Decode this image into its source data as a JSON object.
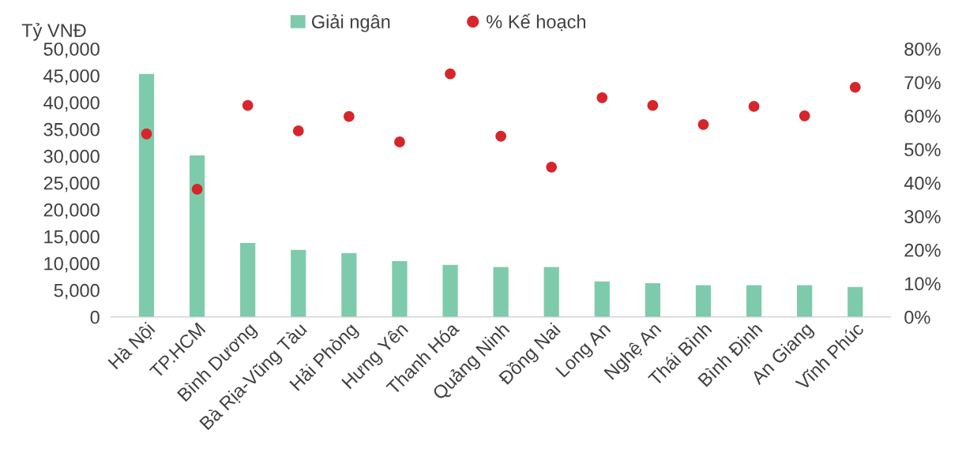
{
  "chart_data": {
    "type": "bar",
    "ylabel": "Tỷ VNĐ",
    "legend": "top",
    "grid": false,
    "categories": [
      "Hà Nội",
      "TP.HCM",
      "Bình Dương",
      "Bà Rịa-Vũng Tàu",
      "Hải Phòng",
      "Hưng Yên",
      "Thanh Hóa",
      "Quảng Ninh",
      "Đồng Nai",
      "Long An",
      "Nghệ An",
      "Thái Bình",
      "Bình Định",
      "An Giang",
      "Vĩnh Phúc"
    ],
    "series": [
      {
        "name": "Giải ngân",
        "color": "#7ecbac",
        "values": [
          45300,
          30100,
          13800,
          12500,
          11900,
          10400,
          9700,
          9300,
          9300,
          6600,
          6300,
          5900,
          5900,
          5900,
          5600
        ]
      },
      {
        "name": "% Kế hoạch",
        "type": "scatter",
        "axis": "y2",
        "marker": "circle",
        "color": "#d7262b",
        "values": [
          54.6,
          38.1,
          63.1,
          55.5,
          59.8,
          52.2,
          72.5,
          53.9,
          44.7,
          65.4,
          63.1,
          57.4,
          62.8,
          60.0,
          68.5
        ]
      }
    ],
    "ylim": [
      0,
      50000
    ],
    "yticks": [
      {
        "value": 0,
        "label": "0"
      },
      {
        "value": 5000,
        "label": "5,000"
      },
      {
        "value": 10000,
        "label": "10,000"
      },
      {
        "value": 15000,
        "label": "15,000"
      },
      {
        "value": 20000,
        "label": "20,000"
      },
      {
        "value": 25000,
        "label": "25,000"
      },
      {
        "value": 30000,
        "label": "30,000"
      },
      {
        "value": 35000,
        "label": "35,000"
      },
      {
        "value": 40000,
        "label": "40,000"
      },
      {
        "value": 45000,
        "label": "45,000"
      },
      {
        "value": 50000,
        "label": "50,000"
      }
    ],
    "y2lim": [
      0,
      80
    ],
    "y2ticks": [
      {
        "value": 0,
        "label": "0%"
      },
      {
        "value": 10,
        "label": "10%"
      },
      {
        "value": 20,
        "label": "20%"
      },
      {
        "value": 30,
        "label": "30%"
      },
      {
        "value": 40,
        "label": "40%"
      },
      {
        "value": 50,
        "label": "50%"
      },
      {
        "value": 60,
        "label": "60%"
      },
      {
        "value": 70,
        "label": "70%"
      },
      {
        "value": 80,
        "label": "80%"
      }
    ]
  }
}
